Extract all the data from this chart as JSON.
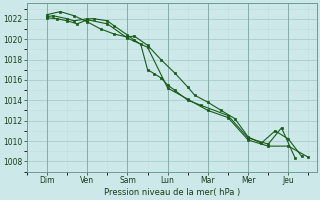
{
  "xlabel": "Pression niveau de la mer( hPa )",
  "bg_color": "#cce8e8",
  "grid_color_major": "#aacccc",
  "grid_color_minor": "#c0dddd",
  "line_color": "#1a5c1a",
  "day_labels": [
    "Dim",
    "Ven",
    "Sam",
    "Lun",
    "Mar",
    "Mer",
    "Jeu"
  ],
  "ylim": [
    1007.0,
    1023.5
  ],
  "yticks": [
    1008,
    1010,
    1012,
    1014,
    1016,
    1018,
    1020,
    1022
  ],
  "series1_x": [
    0.0,
    0.15,
    0.5,
    0.67,
    1.0,
    1.17,
    1.5,
    1.67,
    2.0,
    2.17,
    2.33,
    2.5,
    2.67,
    2.83,
    3.0,
    3.17,
    3.5,
    3.83,
    4.5,
    5.0,
    5.5,
    5.83,
    6.17
  ],
  "series1": [
    1022.2,
    1022.3,
    1022.0,
    1021.8,
    1022.0,
    1022.0,
    1021.8,
    1021.3,
    1020.4,
    1019.9,
    1019.5,
    1017.0,
    1016.6,
    1016.2,
    1015.5,
    1015.0,
    1014.0,
    1013.5,
    1012.5,
    1010.3,
    1009.7,
    1011.3,
    1008.3
  ],
  "series2_x": [
    0.0,
    0.33,
    0.67,
    1.0,
    1.33,
    1.67,
    2.0,
    2.17,
    2.5,
    2.83,
    3.17,
    3.5,
    3.67,
    4.0,
    4.33,
    4.67,
    5.0,
    5.33,
    5.67,
    6.0,
    6.33
  ],
  "series2": [
    1022.4,
    1022.7,
    1022.3,
    1021.7,
    1021.0,
    1020.5,
    1020.2,
    1020.3,
    1019.4,
    1018.0,
    1016.7,
    1015.3,
    1014.5,
    1013.8,
    1013.0,
    1012.2,
    1010.4,
    1009.8,
    1011.0,
    1010.2,
    1008.5
  ],
  "series3_x": [
    0.0,
    0.25,
    0.5,
    0.75,
    1.0,
    1.5,
    2.0,
    2.5,
    3.0,
    3.5,
    4.0,
    4.5,
    5.0,
    5.5,
    6.0,
    6.5
  ],
  "series3": [
    1022.1,
    1022.0,
    1021.8,
    1021.5,
    1021.9,
    1021.5,
    1020.1,
    1019.2,
    1015.2,
    1014.1,
    1013.0,
    1012.3,
    1010.1,
    1009.5,
    1009.5,
    1008.4
  ],
  "day_x": [
    0,
    1,
    2,
    3,
    4,
    5,
    6
  ]
}
